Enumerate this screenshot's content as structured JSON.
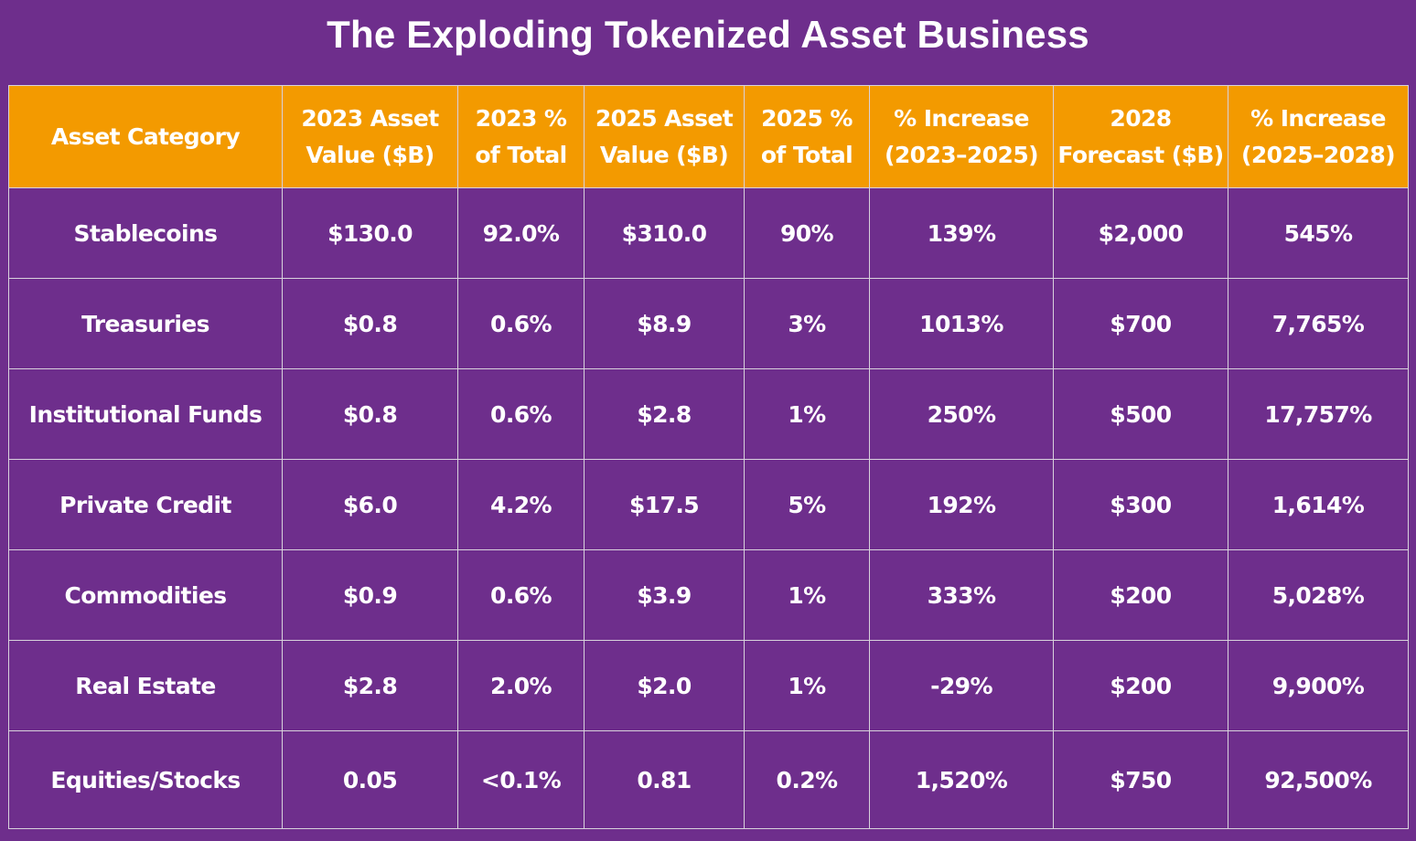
{
  "title": "The Exploding Tokenized Asset Business",
  "colors": {
    "background": "#6e2e8c",
    "header": "#f39a00",
    "grid": "#d8d2dc",
    "text": "#ffffff"
  },
  "chart_data": {
    "type": "table",
    "title": "The Exploding Tokenized Asset Business",
    "columns": [
      "Asset Category",
      "2023 Asset Value ($B)",
      "2023 % of Total",
      "2025 Asset Value ($B)",
      "2025 % of Total",
      "% Increase (2023–2025)",
      "2028 Forecast ($B)",
      "% Increase (2025–2028)"
    ],
    "rows": [
      [
        "Stablecoins",
        "$130.0",
        "92.0%",
        "$310.0",
        "90%",
        "139%",
        "$2,000",
        "545%"
      ],
      [
        "Treasuries",
        "$0.8",
        "0.6%",
        "$8.9",
        "3%",
        "1013%",
        "$700",
        "7,765%"
      ],
      [
        "Institutional Funds",
        "$0.8",
        "0.6%",
        "$2.8",
        "1%",
        "250%",
        "$500",
        "17,757%"
      ],
      [
        "Private Credit",
        "$6.0",
        "4.2%",
        "$17.5",
        "5%",
        "192%",
        "$300",
        "1,614%"
      ],
      [
        "Commodities",
        "$0.9",
        "0.6%",
        "$3.9",
        "1%",
        "333%",
        "$200",
        "5,028%"
      ],
      [
        "Real Estate",
        "$2.8",
        "2.0%",
        "$2.0",
        "1%",
        "-29%",
        "$200",
        "9,900%"
      ],
      [
        "Equities/Stocks",
        "0.05",
        "<0.1%",
        "0.81",
        "0.2%",
        "1,520%",
        "$750",
        "92,500%"
      ]
    ]
  }
}
